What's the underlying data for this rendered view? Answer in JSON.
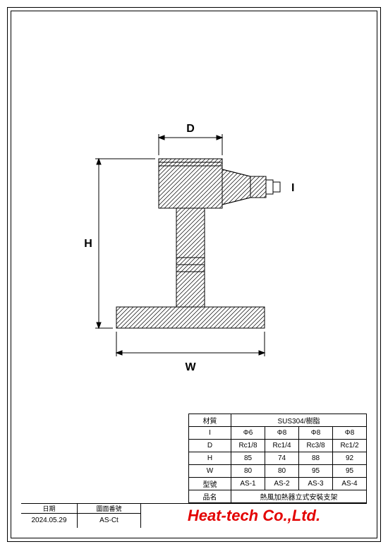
{
  "dimensions": {
    "D": "D",
    "H": "H",
    "W": "W",
    "I": "I"
  },
  "spec_table": {
    "rows": [
      {
        "header": "材質",
        "span_value": "SUS304/樹脂",
        "is_span": true
      },
      {
        "header": "I",
        "values": [
          "Φ6",
          "Φ8",
          "Φ8",
          "Φ8"
        ],
        "is_span": false
      },
      {
        "header": "D",
        "values": [
          "Rc1/8",
          "Rc1/4",
          "Rc3/8",
          "Rc1/2"
        ],
        "is_span": false
      },
      {
        "header": "H",
        "values": [
          "85",
          "74",
          "88",
          "92"
        ],
        "is_span": false
      },
      {
        "header": "W",
        "values": [
          "80",
          "80",
          "95",
          "95"
        ],
        "is_span": false
      },
      {
        "header": "型號",
        "values": [
          "AS-1",
          "AS-2",
          "AS-3",
          "AS-4"
        ],
        "is_span": false
      },
      {
        "header": "品名",
        "span_value": "熱風加熱器立式安裝支架",
        "is_span": true
      }
    ]
  },
  "title_block": {
    "date_label": "日期",
    "date_value": "2024.05.29",
    "drawing_no_label": "圖面番號",
    "drawing_no_value": "AS-Ct",
    "company": "Heat-tech Co.,Ltd."
  },
  "colors": {
    "line": "#000000",
    "hatch": "#000000",
    "company": "#e30000",
    "background": "#ffffff"
  },
  "drawing": {
    "type": "engineering-drawing",
    "aspect_ratio": "550x778",
    "line_width": 1
  }
}
